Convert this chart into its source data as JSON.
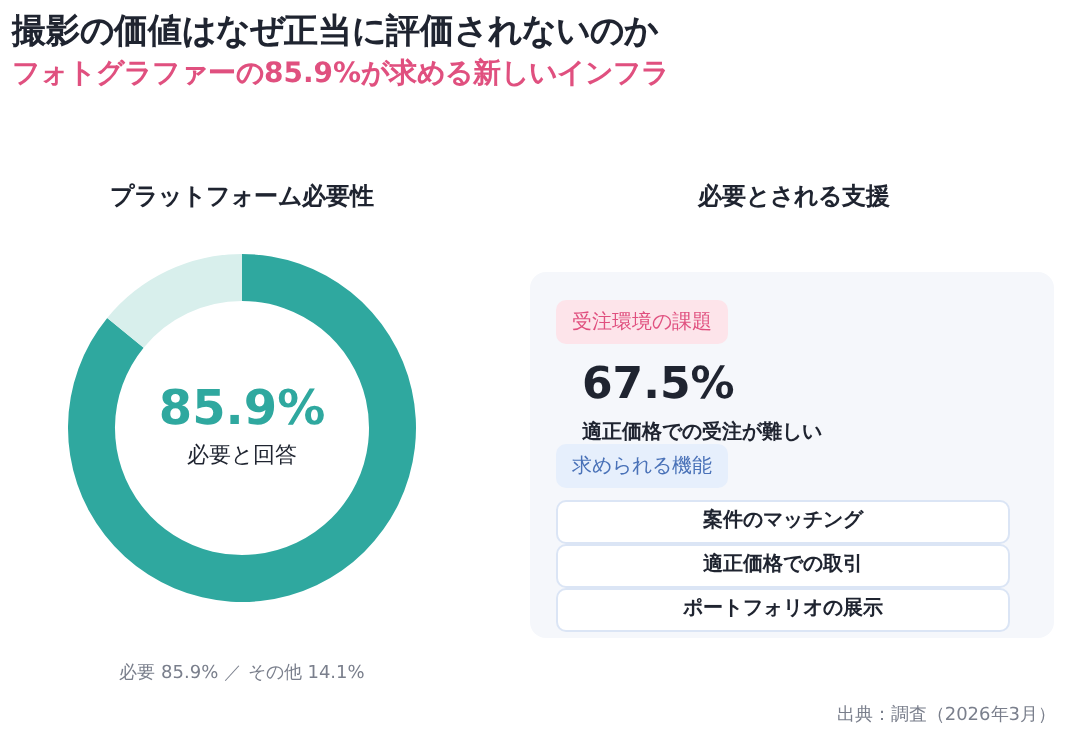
{
  "chart_data": [
    {
      "type": "donut",
      "title": "撮影の価値はなぜ正当に評価されないのか",
      "subtitle": "フォトグラファーの85.9%が求める新しいインフラ",
      "categories": [
        "必要",
        "その他"
      ],
      "values": [
        85.9,
        14.1
      ],
      "colors": [
        "#2fa89f",
        "#d8efec"
      ],
      "legend": false,
      "value_labels": [
        "85.9%",
        "14.1%"
      ],
      "annotations": [
        "プラットフォーム必要性",
        "85.9%",
        "必要と回答",
        "／"
      ]
    },
    {
      "type": "other",
      "title": "必要とされる支援",
      "annotations": [
        "受注環境の課題",
        "67.5%",
        "適正価格での受注が難しい",
        "求められる機能",
        "案件のマッチング",
        "適正価格での取引",
        "ポートフォリオの展示",
        "出典：調査（2026年3月）"
      ]
    }
  ]
}
